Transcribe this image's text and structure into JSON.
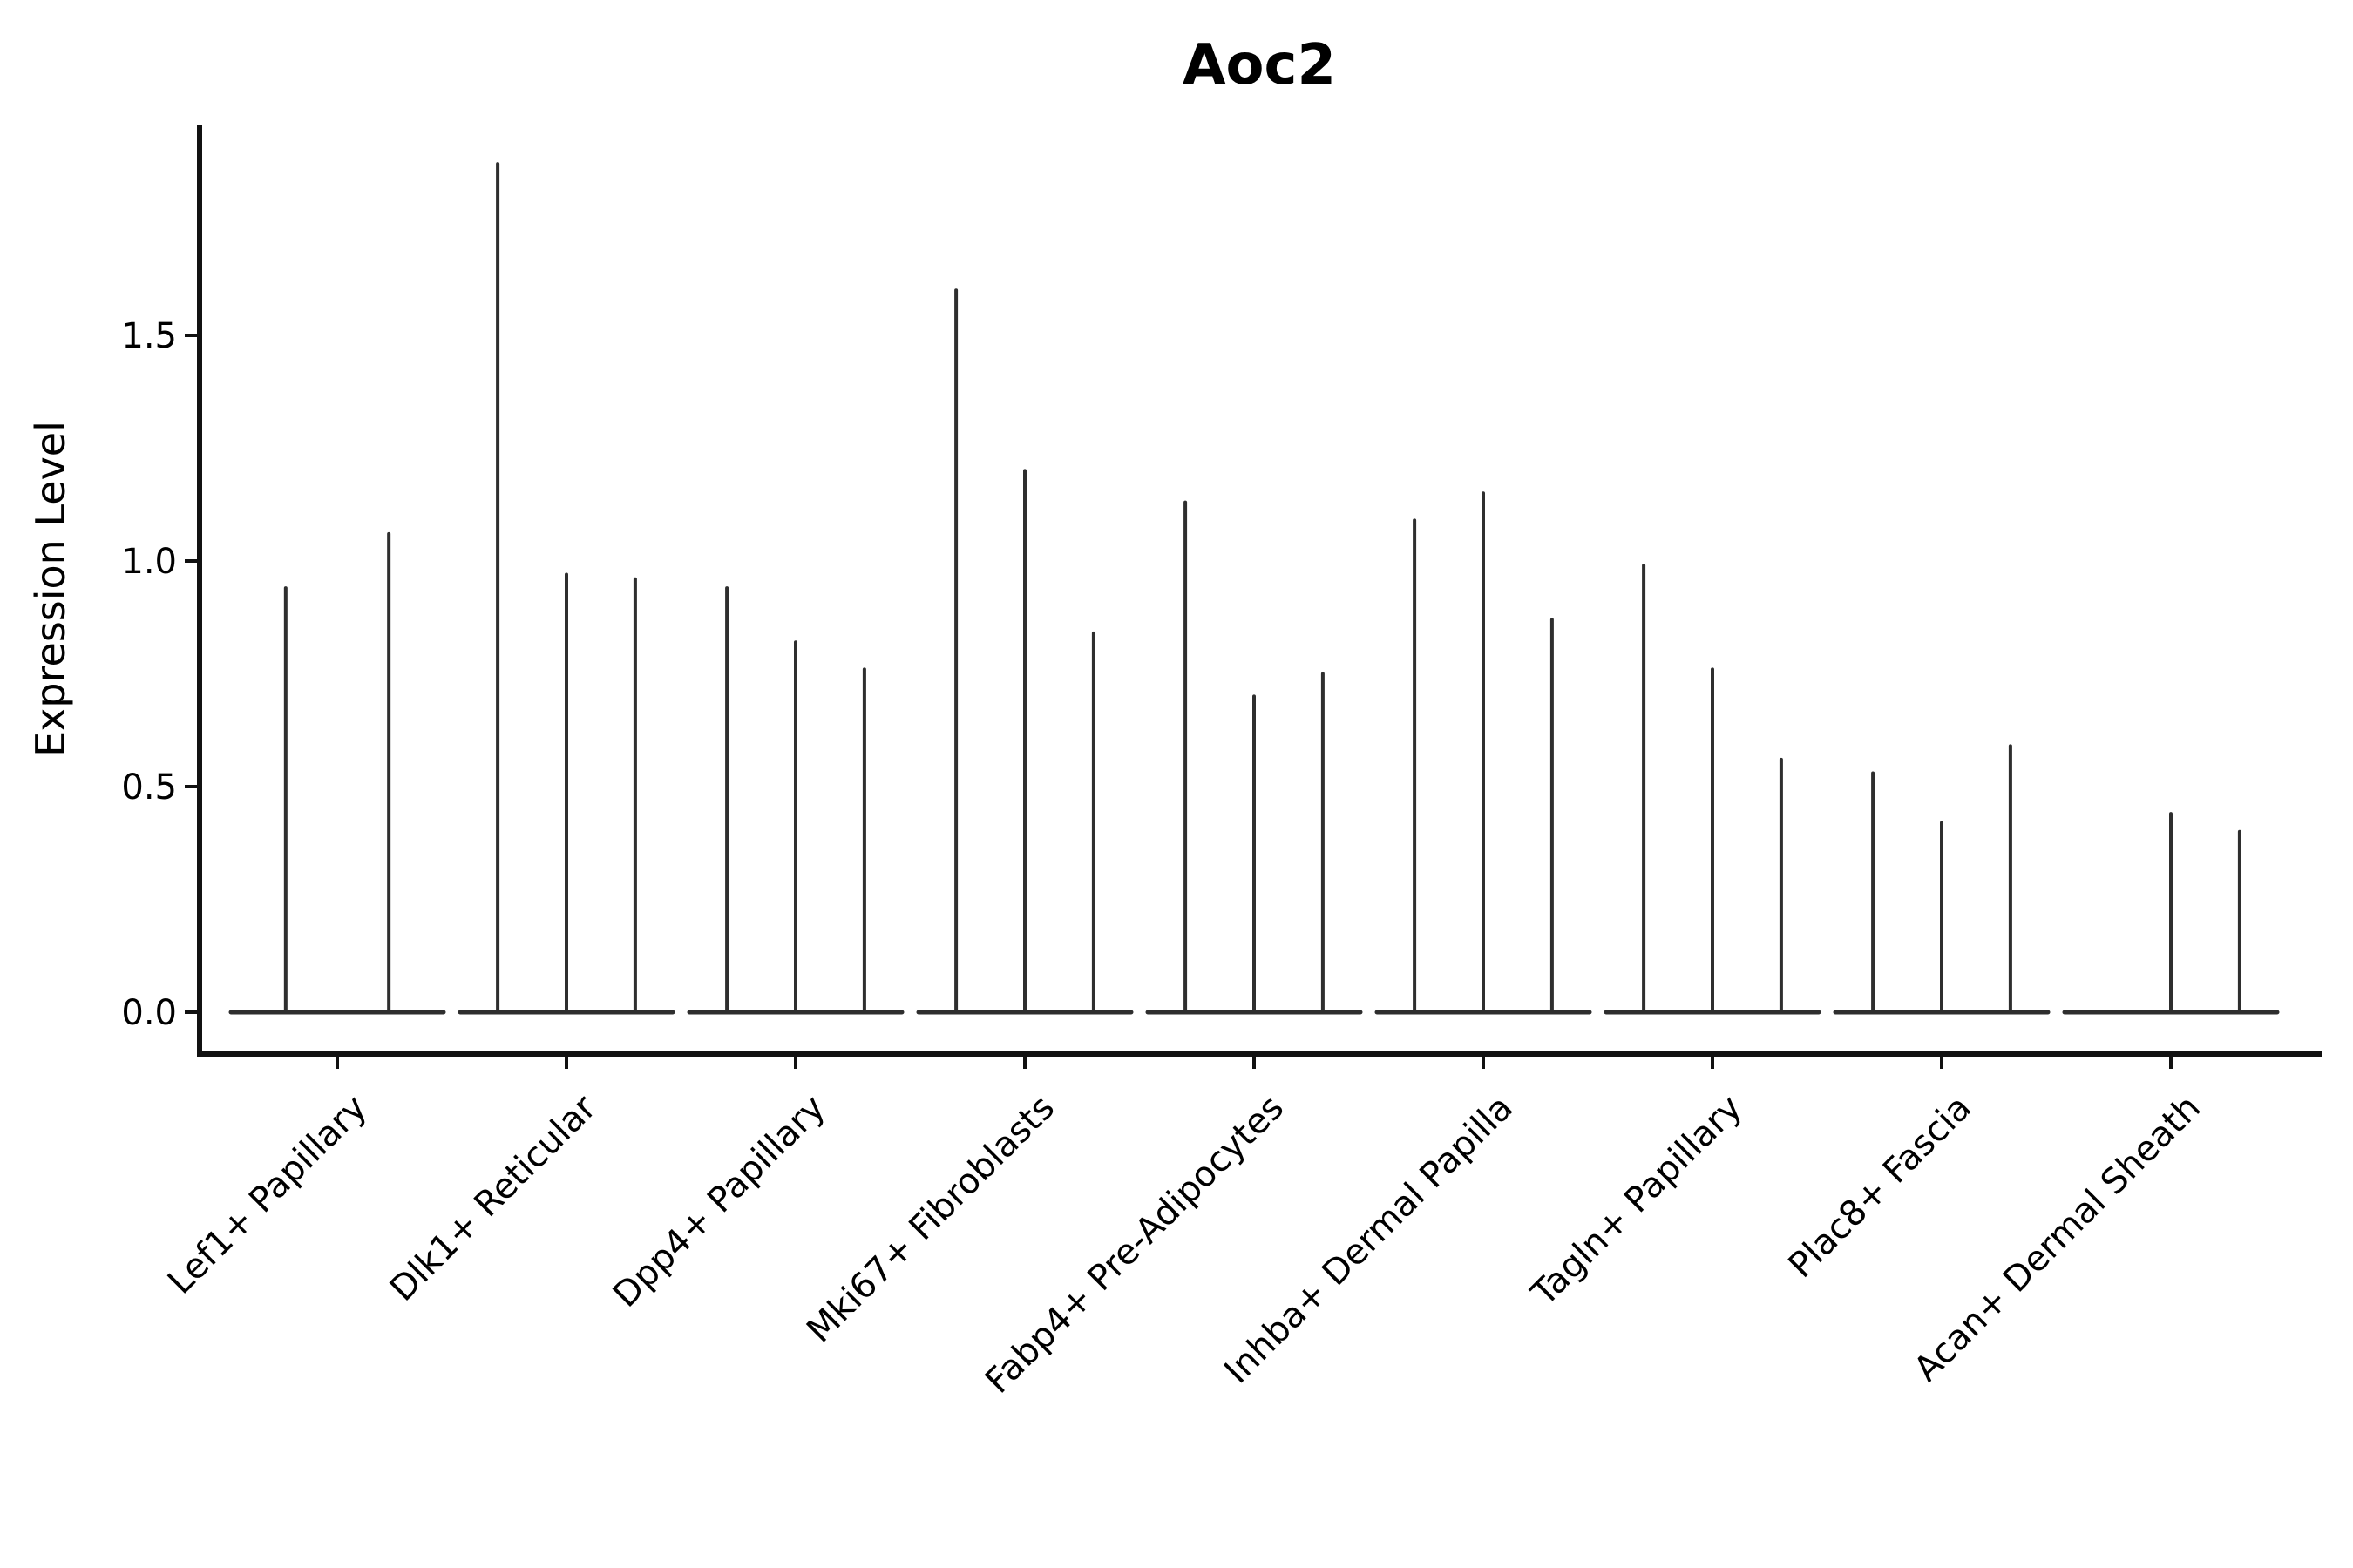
{
  "chart_data": {
    "type": "violin",
    "title": "Aoc2",
    "ylabel": "Expression Level",
    "xlabel": "",
    "ytick_labels": [
      "0.0",
      "0.5",
      "1.0",
      "1.5"
    ],
    "ytick_values": [
      0.0,
      0.5,
      1.0,
      1.5
    ],
    "ylim": [
      0.0,
      1.97
    ],
    "grid": false,
    "legend_position": "none",
    "x_label_rotation_deg": 45,
    "groups": [
      {
        "category": "Lef1+ Papillary",
        "violin_peaks": [
          0.94,
          1.06
        ]
      },
      {
        "category": "Dlk1+ Reticular",
        "violin_peaks": [
          1.88,
          0.97,
          0.96
        ]
      },
      {
        "category": "Dpp4+ Papillary",
        "violin_peaks": [
          0.94,
          0.82,
          0.76
        ]
      },
      {
        "category": "Mki67+ Fibroblasts",
        "violin_peaks": [
          1.6,
          1.2,
          0.84
        ]
      },
      {
        "category": "Fabp4+ Pre-Adipocytes",
        "violin_peaks": [
          1.13,
          0.7,
          0.75
        ]
      },
      {
        "category": "Inhba+ Dermal Papilla",
        "violin_peaks": [
          1.09,
          1.15,
          0.87
        ]
      },
      {
        "category": "Tagln+ Papillary",
        "violin_peaks": [
          0.99,
          0.76,
          0.56
        ]
      },
      {
        "category": "Plac8+ Fascia",
        "violin_peaks": [
          0.53,
          0.42,
          0.59
        ]
      },
      {
        "category": "Acan+ Dermal Sheath",
        "violin_peaks": [
          0.0,
          0.44,
          0.4
        ]
      }
    ],
    "colors": {
      "violin_line": "#2e2e2e",
      "axis": "#111111",
      "text": "#000000",
      "background": "#ffffff"
    }
  }
}
